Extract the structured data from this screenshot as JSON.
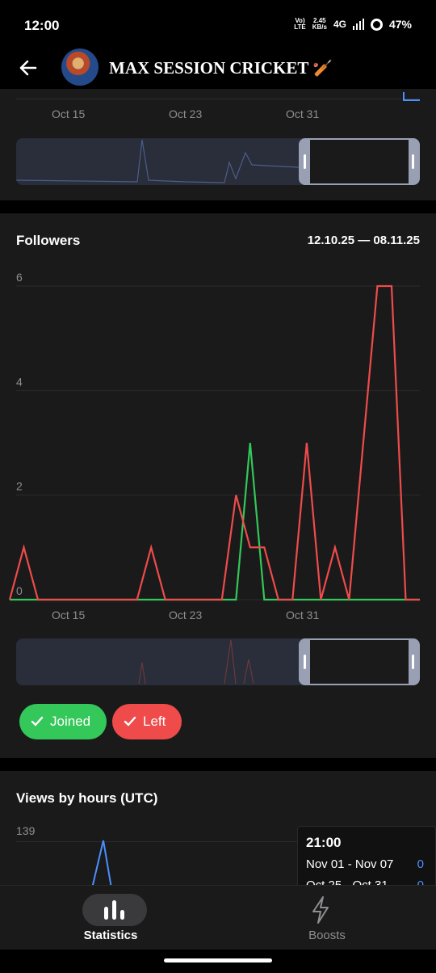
{
  "status_bar": {
    "time": "12:00",
    "volte_top": "Vo)",
    "volte_bottom": "LTE",
    "speed_top": "2.45",
    "speed_bottom": "KB/s",
    "network": "4G",
    "battery": "47%"
  },
  "header": {
    "channel_title": "MAX SESSION CRICKET",
    "title_emoji": "🏏"
  },
  "top_chart": {
    "x_ticks": [
      "Oct 15",
      "Oct 23",
      "Oct 31"
    ]
  },
  "followers": {
    "title": "Followers",
    "date_range": "12.10.25 — 08.11.25",
    "chart_data": {
      "type": "line",
      "x": [
        "Oct 10",
        "Oct 11",
        "Oct 12",
        "Oct 13",
        "Oct 14",
        "Oct 15",
        "Oct 16",
        "Oct 17",
        "Oct 18",
        "Oct 19",
        "Oct 20",
        "Oct 21",
        "Oct 22",
        "Oct 23",
        "Oct 24",
        "Oct 25",
        "Oct 26",
        "Oct 27",
        "Oct 28",
        "Oct 29",
        "Oct 30",
        "Oct 31",
        "Nov 01",
        "Nov 02",
        "Nov 03",
        "Nov 04",
        "Nov 05",
        "Nov 06",
        "Nov 07",
        "Nov 08"
      ],
      "series": [
        {
          "name": "Joined",
          "color": "#34c759",
          "values": [
            0,
            0,
            0,
            0,
            0,
            0,
            0,
            0,
            0,
            0,
            0,
            0,
            0,
            0,
            0,
            0,
            0,
            3,
            0,
            0,
            0,
            0,
            0,
            0,
            0,
            0,
            0,
            0,
            0,
            0
          ]
        },
        {
          "name": "Left",
          "color": "#ef4b4b",
          "values": [
            0,
            1,
            0,
            0,
            0,
            0,
            0,
            0,
            0,
            0,
            1,
            0,
            0,
            0,
            0,
            0,
            2,
            1,
            1,
            0,
            0,
            3,
            0,
            1,
            0,
            3,
            6,
            6,
            0,
            0
          ]
        }
      ],
      "y_ticks": [
        "0",
        "2",
        "4",
        "6"
      ],
      "x_ticks": [
        "Oct 15",
        "Oct 23",
        "Oct 31"
      ],
      "ylim": [
        0,
        6
      ]
    },
    "legend": {
      "joined_label": "Joined",
      "left_label": "Left"
    }
  },
  "views_by_hours": {
    "title": "Views by hours (UTC)",
    "y_top": "139",
    "tooltip": {
      "time": "21:00",
      "row1_label": "Nov 01 - Nov 07",
      "row1_value": "0",
      "row2_label": "Oct 25 - Oct 31",
      "row2_value": "0"
    }
  },
  "tabbar": {
    "statistics_label": "Statistics",
    "boosts_label": "Boosts"
  },
  "colors": {
    "accent_blue": "#4a90ff",
    "joined_green": "#34c759",
    "left_red": "#ef4b4b"
  }
}
